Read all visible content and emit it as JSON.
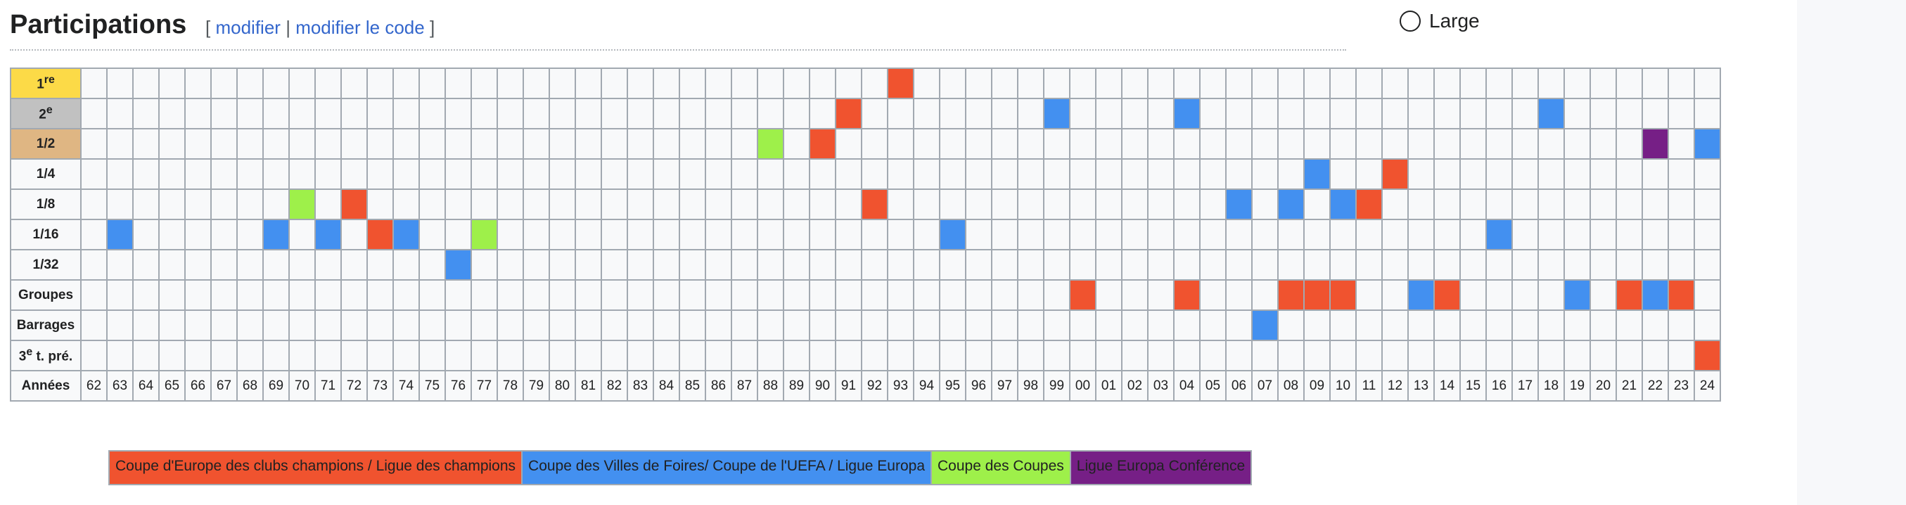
{
  "header": {
    "title": "Participations",
    "open": "[",
    "edit": "modifier",
    "sep": "|",
    "edit_code": "modifier le code",
    "close": "]"
  },
  "toggle": {
    "label": "Large"
  },
  "colors": {
    "ldc": "#f0532f",
    "uefa": "#4390f0",
    "coupes": "#9ef04a",
    "conf": "#761f86",
    "first": "#fcda47",
    "second": "#c1c1c1",
    "semi": "#dfb683",
    "empty": "#f8f9fa"
  },
  "rows": [
    {
      "key": "first",
      "label": "1",
      "sup": "re"
    },
    {
      "key": "second",
      "label": "2",
      "sup": "e"
    },
    {
      "key": "semi",
      "label": "1/2",
      "sup": ""
    },
    {
      "key": "qf",
      "label": "1/4",
      "sup": ""
    },
    {
      "key": "r16",
      "label": "1/8",
      "sup": ""
    },
    {
      "key": "r32",
      "label": "1/16",
      "sup": ""
    },
    {
      "key": "r64",
      "label": "1/32",
      "sup": ""
    },
    {
      "key": "groups",
      "label": "Groupes",
      "sup": ""
    },
    {
      "key": "playoff",
      "label": "Barrages",
      "sup": ""
    },
    {
      "key": "q3",
      "label": "3",
      "sup": "e",
      "suffix": " t. pré."
    }
  ],
  "years_label": "Années",
  "years": [
    "62",
    "63",
    "64",
    "65",
    "66",
    "67",
    "68",
    "69",
    "70",
    "71",
    "72",
    "73",
    "74",
    "75",
    "76",
    "77",
    "78",
    "79",
    "80",
    "81",
    "82",
    "83",
    "84",
    "85",
    "86",
    "87",
    "88",
    "89",
    "90",
    "91",
    "92",
    "93",
    "94",
    "95",
    "96",
    "97",
    "98",
    "99",
    "00",
    "01",
    "02",
    "03",
    "04",
    "05",
    "06",
    "07",
    "08",
    "09",
    "10",
    "11",
    "12",
    "13",
    "14",
    "15",
    "16",
    "17",
    "18",
    "19",
    "20",
    "21",
    "22",
    "23",
    "24"
  ],
  "participations": [
    {
      "row": 0,
      "year": "93",
      "comp": "ldc"
    },
    {
      "row": 1,
      "year": "91",
      "comp": "ldc"
    },
    {
      "row": 1,
      "year": "99",
      "comp": "uefa"
    },
    {
      "row": 1,
      "year": "04",
      "comp": "uefa"
    },
    {
      "row": 1,
      "year": "18",
      "comp": "uefa"
    },
    {
      "row": 2,
      "year": "88",
      "comp": "coupes"
    },
    {
      "row": 2,
      "year": "90",
      "comp": "ldc"
    },
    {
      "row": 2,
      "year": "22",
      "comp": "conf"
    },
    {
      "row": 2,
      "year": "24",
      "comp": "uefa"
    },
    {
      "row": 3,
      "year": "09",
      "comp": "uefa"
    },
    {
      "row": 3,
      "year": "12",
      "comp": "ldc"
    },
    {
      "row": 4,
      "year": "70",
      "comp": "coupes"
    },
    {
      "row": 4,
      "year": "72",
      "comp": "ldc"
    },
    {
      "row": 4,
      "year": "92",
      "comp": "ldc"
    },
    {
      "row": 4,
      "year": "06",
      "comp": "uefa"
    },
    {
      "row": 4,
      "year": "08",
      "comp": "uefa"
    },
    {
      "row": 4,
      "year": "10",
      "comp": "uefa"
    },
    {
      "row": 4,
      "year": "11",
      "comp": "ldc"
    },
    {
      "row": 5,
      "year": "63",
      "comp": "uefa"
    },
    {
      "row": 5,
      "year": "69",
      "comp": "uefa"
    },
    {
      "row": 5,
      "year": "71",
      "comp": "uefa"
    },
    {
      "row": 5,
      "year": "73",
      "comp": "ldc"
    },
    {
      "row": 5,
      "year": "74",
      "comp": "uefa"
    },
    {
      "row": 5,
      "year": "77",
      "comp": "coupes"
    },
    {
      "row": 5,
      "year": "95",
      "comp": "uefa"
    },
    {
      "row": 5,
      "year": "16",
      "comp": "uefa"
    },
    {
      "row": 6,
      "year": "76",
      "comp": "uefa"
    },
    {
      "row": 7,
      "year": "00",
      "comp": "ldc"
    },
    {
      "row": 7,
      "year": "04",
      "comp": "ldc"
    },
    {
      "row": 7,
      "year": "08",
      "comp": "ldc"
    },
    {
      "row": 7,
      "year": "09",
      "comp": "ldc"
    },
    {
      "row": 7,
      "year": "10",
      "comp": "ldc"
    },
    {
      "row": 7,
      "year": "13",
      "comp": "uefa"
    },
    {
      "row": 7,
      "year": "14",
      "comp": "ldc"
    },
    {
      "row": 7,
      "year": "19",
      "comp": "uefa"
    },
    {
      "row": 7,
      "year": "21",
      "comp": "ldc"
    },
    {
      "row": 7,
      "year": "22",
      "comp": "uefa"
    },
    {
      "row": 7,
      "year": "23",
      "comp": "ldc"
    },
    {
      "row": 8,
      "year": "07",
      "comp": "uefa"
    },
    {
      "row": 9,
      "year": "24",
      "comp": "ldc"
    }
  ],
  "legend": [
    {
      "comp": "ldc",
      "label": "Coupe d'Europe des clubs champions / Ligue des champions"
    },
    {
      "comp": "uefa",
      "label": "Coupe des Villes de Foires/ Coupe de l'UEFA / Ligue Europa"
    },
    {
      "comp": "coupes",
      "label": "Coupe des Coupes"
    },
    {
      "comp": "conf",
      "label": "Ligue Europa Conférence"
    }
  ]
}
